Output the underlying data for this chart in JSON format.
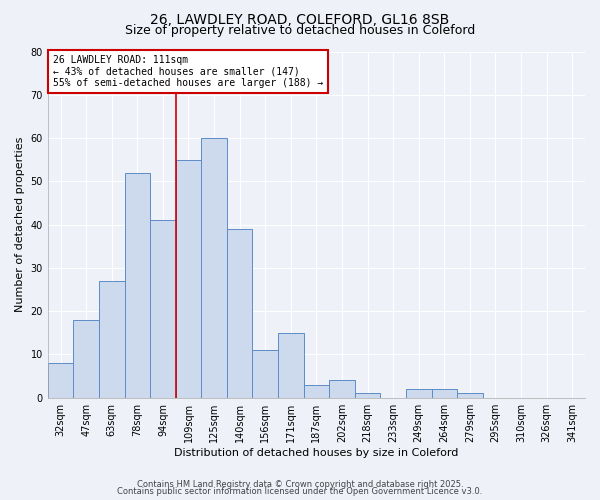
{
  "title1": "26, LAWDLEY ROAD, COLEFORD, GL16 8SB",
  "title2": "Size of property relative to detached houses in Coleford",
  "xlabel": "Distribution of detached houses by size in Coleford",
  "ylabel": "Number of detached properties",
  "categories": [
    "32sqm",
    "47sqm",
    "63sqm",
    "78sqm",
    "94sqm",
    "109sqm",
    "125sqm",
    "140sqm",
    "156sqm",
    "171sqm",
    "187sqm",
    "202sqm",
    "218sqm",
    "233sqm",
    "249sqm",
    "264sqm",
    "279sqm",
    "295sqm",
    "310sqm",
    "326sqm",
    "341sqm"
  ],
  "values": [
    8,
    18,
    27,
    52,
    41,
    55,
    60,
    39,
    11,
    15,
    3,
    4,
    1,
    0,
    2,
    2,
    1,
    0,
    0,
    0,
    0
  ],
  "bar_color": "#cdd9ec",
  "bar_edge_color": "#5b8cc8",
  "vline_color": "#cc0000",
  "annotation_title": "26 LAWDLEY ROAD: 111sqm",
  "annotation_line1": "← 43% of detached houses are smaller (147)",
  "annotation_line2": "55% of semi-detached houses are larger (188) →",
  "annotation_box_color": "#ffffff",
  "annotation_box_edge": "#cc0000",
  "ylim": [
    0,
    80
  ],
  "yticks": [
    0,
    10,
    20,
    30,
    40,
    50,
    60,
    70,
    80
  ],
  "footer1": "Contains HM Land Registry data © Crown copyright and database right 2025.",
  "footer2": "Contains public sector information licensed under the Open Government Licence v3.0.",
  "background_color": "#eef1f8",
  "grid_color": "#ffffff",
  "title_fontsize": 10,
  "subtitle_fontsize": 9,
  "axis_fontsize": 8,
  "tick_fontsize": 7,
  "footer_fontsize": 6
}
